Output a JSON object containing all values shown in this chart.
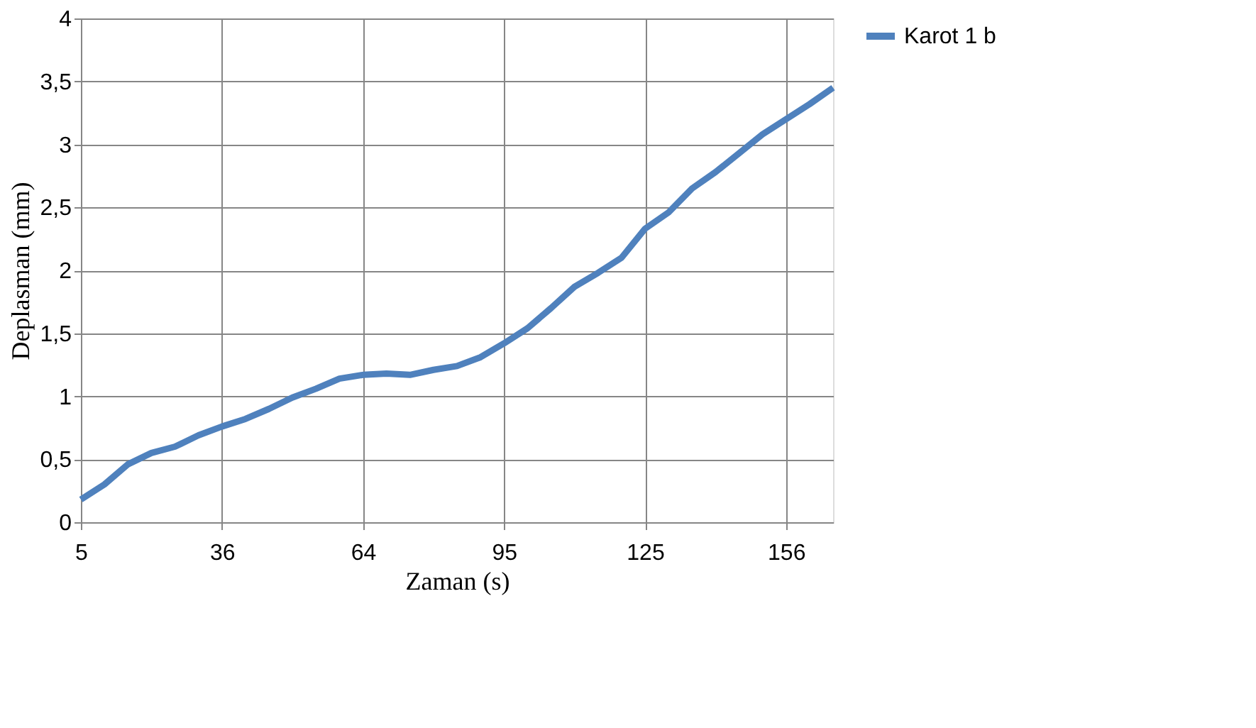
{
  "chart_data": {
    "type": "line",
    "xlabel": "Zaman (s)",
    "ylabel": "Deplasman (mm)",
    "categories": [
      "5",
      null,
      null,
      null,
      null,
      null,
      "36",
      null,
      null,
      null,
      null,
      null,
      "64",
      null,
      null,
      null,
      null,
      null,
      "95",
      null,
      null,
      null,
      null,
      null,
      "125",
      null,
      null,
      null,
      null,
      null,
      "156",
      null,
      null
    ],
    "series": [
      {
        "name": "Karot 1 b",
        "color": "#4f81bd",
        "values": [
          0.18,
          0.3,
          0.46,
          0.55,
          0.6,
          0.69,
          0.76,
          0.82,
          0.9,
          0.99,
          1.06,
          1.14,
          1.17,
          1.18,
          1.17,
          1.21,
          1.24,
          1.31,
          1.42,
          1.54,
          1.7,
          1.87,
          1.98,
          2.1,
          2.33,
          2.46,
          2.65,
          2.78,
          2.93,
          3.08,
          3.2,
          3.32,
          3.45
        ]
      }
    ],
    "ylim": [
      0,
      4
    ],
    "yticks": [
      0,
      {
        "value": 0.5,
        "label": "0,5"
      },
      1,
      {
        "value": 1.5,
        "label": "1,5"
      },
      2,
      {
        "value": 2.5,
        "label": "2,5"
      },
      3,
      {
        "value": 3.5,
        "label": "3,5"
      },
      4
    ],
    "grid": true,
    "legend": "right",
    "marker": "none",
    "line_style": "solid"
  }
}
